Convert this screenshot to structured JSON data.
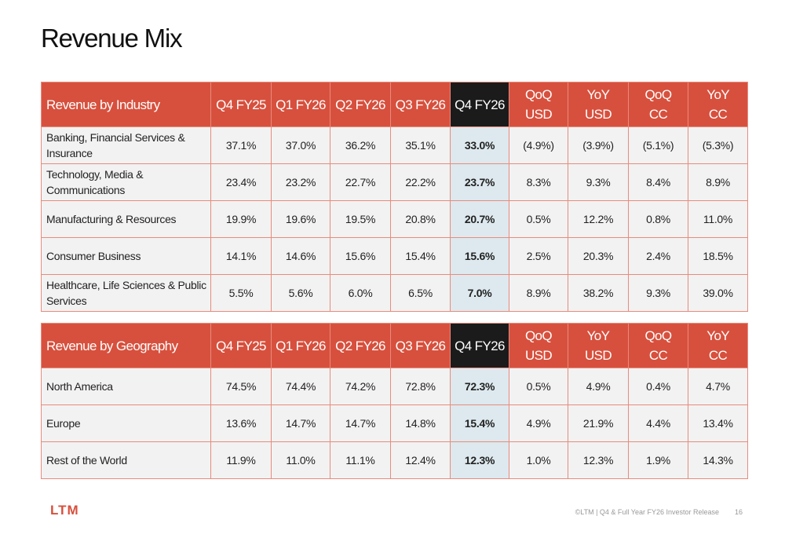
{
  "header": {
    "title": "Revenue Mix"
  },
  "tables": [
    {
      "columns": [
        "Revenue by Industry",
        "Q4 FY25",
        "Q1 FY26",
        "Q2 FY26",
        "Q3 FY26",
        "Q4 FY26",
        "QoQ USD",
        "YoY USD",
        "QoQ CC",
        "YoY CC"
      ],
      "rows": [
        [
          "Banking, Financial Services & Insurance",
          "37.1%",
          "37.0%",
          "36.2%",
          "35.1%",
          "33.0%",
          "(4.9%)",
          "(3.9%)",
          "(5.1%)",
          "(5.3%)"
        ],
        [
          "Technology, Media & Communications",
          "23.4%",
          "23.2%",
          "22.7%",
          "22.2%",
          "23.7%",
          "8.3%",
          "9.3%",
          "8.4%",
          "8.9%"
        ],
        [
          "Manufacturing & Resources",
          "19.9%",
          "19.6%",
          "19.5%",
          "20.8%",
          "20.7%",
          "0.5%",
          "12.2%",
          "0.8%",
          "11.0%"
        ],
        [
          "Consumer Business",
          "14.1%",
          "14.6%",
          "15.6%",
          "15.4%",
          "15.6%",
          "2.5%",
          "20.3%",
          "2.4%",
          "18.5%"
        ],
        [
          "Healthcare, Life Sciences & Public Services",
          "5.5%",
          "5.6%",
          "6.0%",
          "6.5%",
          "7.0%",
          "8.9%",
          "38.2%",
          "9.3%",
          "39.0%"
        ]
      ]
    },
    {
      "columns": [
        "Revenue by Geography",
        "Q4 FY25",
        "Q1 FY26",
        "Q2 FY26",
        "Q3 FY26",
        "Q4 FY26",
        "QoQ USD",
        "YoY USD",
        "QoQ CC",
        "YoY CC"
      ],
      "rows": [
        [
          "North America",
          "74.5%",
          "74.4%",
          "74.2%",
          "72.8%",
          "72.3%",
          "0.5%",
          "4.9%",
          "0.4%",
          "4.7%"
        ],
        [
          "Europe",
          "13.6%",
          "14.7%",
          "14.7%",
          "14.8%",
          "15.4%",
          "4.9%",
          "21.9%",
          "4.4%",
          "13.4%"
        ],
        [
          "Rest of the World",
          "11.9%",
          "11.0%",
          "11.1%",
          "12.4%",
          "12.3%",
          "1.0%",
          "12.3%",
          "1.9%",
          "14.3%"
        ]
      ]
    }
  ],
  "footer": {
    "logo": "LTM",
    "text": "©LTM | Q4 & Full Year FY26 Investor Release",
    "page": "16"
  }
}
